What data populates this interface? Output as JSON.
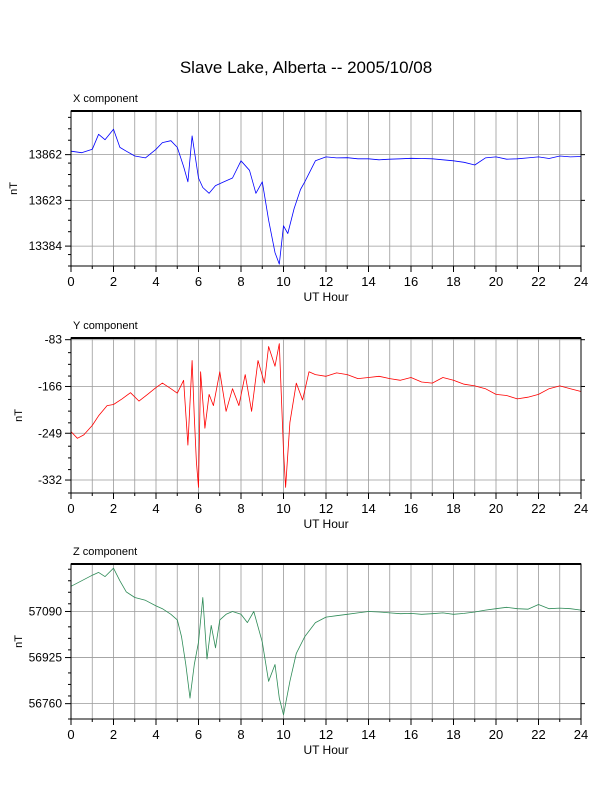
{
  "title": "Slave Lake, Alberta -- 2005/10/08",
  "chart_data": [
    {
      "type": "line",
      "subtitle": "X component",
      "xlabel": "UT Hour",
      "ylabel": "nT",
      "color": "#0000ff",
      "xlim": [
        0,
        24
      ],
      "ylim": [
        13280,
        14090
      ],
      "xticks": [
        0,
        2,
        4,
        6,
        8,
        10,
        12,
        14,
        16,
        18,
        20,
        22,
        24
      ],
      "yticks": [
        13862,
        13623,
        13384
      ],
      "grid": true,
      "series": [
        {
          "x": [
            0,
            0.5,
            1,
            1.3,
            1.6,
            2,
            2.3,
            2.6,
            3,
            3.5,
            4,
            4.3,
            4.7,
            5,
            5.3,
            5.5,
            5.7,
            6,
            6.2,
            6.5,
            6.8,
            7.2,
            7.6,
            8,
            8.4,
            8.7,
            9,
            9.3,
            9.6,
            9.8,
            10,
            10.2,
            10.5,
            10.8,
            11,
            11.5,
            12,
            12.5,
            13,
            13.5,
            14,
            14.5,
            15,
            15.5,
            16,
            16.5,
            17,
            17.5,
            18,
            18.5,
            19,
            19.5,
            20,
            20.5,
            21,
            21.5,
            22,
            22.5,
            23,
            23.5,
            24
          ],
          "values": [
            13880,
            13872,
            13890,
            13968,
            13940,
            13995,
            13900,
            13880,
            13855,
            13845,
            13890,
            13925,
            13935,
            13900,
            13800,
            13720,
            13960,
            13740,
            13690,
            13660,
            13700,
            13720,
            13740,
            13830,
            13780,
            13660,
            13720,
            13520,
            13350,
            13290,
            13490,
            13450,
            13580,
            13680,
            13720,
            13830,
            13850,
            13845,
            13846,
            13840,
            13840,
            13835,
            13838,
            13840,
            13843,
            13842,
            13840,
            13835,
            13830,
            13822,
            13808,
            13845,
            13850,
            13838,
            13840,
            13845,
            13850,
            13842,
            13855,
            13850,
            13852
          ]
        }
      ]
    },
    {
      "type": "line",
      "subtitle": "Y component",
      "xlabel": "UT Hour",
      "ylabel": "nT",
      "color": "#ff0000",
      "xlim": [
        0,
        24
      ],
      "ylim": [
        -355,
        -80
      ],
      "xticks": [
        0,
        2,
        4,
        6,
        8,
        10,
        12,
        14,
        16,
        18,
        20,
        22,
        24
      ],
      "yticks": [
        -83,
        -166,
        -249,
        -332
      ],
      "grid": true,
      "series": [
        {
          "x": [
            0,
            0.3,
            0.6,
            1,
            1.3,
            1.7,
            2,
            2.4,
            2.8,
            3.2,
            3.6,
            4,
            4.3,
            4.7,
            5,
            5.3,
            5.5,
            5.7,
            5.8,
            5.9,
            6,
            6.1,
            6.3,
            6.5,
            6.7,
            7,
            7.3,
            7.6,
            7.9,
            8.2,
            8.5,
            8.8,
            9.1,
            9.3,
            9.6,
            9.8,
            10,
            10.1,
            10.3,
            10.6,
            10.9,
            11.2,
            11.5,
            12,
            12.5,
            13,
            13.5,
            14,
            14.5,
            15,
            15.5,
            16,
            16.5,
            17,
            17.5,
            18,
            18.5,
            19,
            19.5,
            20,
            20.5,
            21,
            21.5,
            22,
            22.5,
            23,
            23.5,
            24
          ],
          "values": [
            -246,
            -258,
            -252,
            -235,
            -218,
            -200,
            -198,
            -188,
            -177,
            -192,
            -180,
            -168,
            -160,
            -170,
            -178,
            -155,
            -270,
            -120,
            -220,
            -300,
            -345,
            -140,
            -240,
            -180,
            -200,
            -140,
            -210,
            -170,
            -200,
            -145,
            -210,
            -120,
            -160,
            -95,
            -130,
            -90,
            -280,
            -345,
            -230,
            -160,
            -190,
            -140,
            -145,
            -148,
            -142,
            -145,
            -152,
            -150,
            -148,
            -152,
            -155,
            -150,
            -158,
            -160,
            -150,
            -155,
            -162,
            -165,
            -170,
            -180,
            -182,
            -188,
            -185,
            -180,
            -170,
            -165,
            -170,
            -175
          ]
        }
      ]
    },
    {
      "type": "line",
      "subtitle": "Z component",
      "xlabel": "UT Hour",
      "ylabel": "nT",
      "color": "#2e8b57",
      "xlim": [
        0,
        24
      ],
      "ylim": [
        56705,
        57260
      ],
      "xticks": [
        0,
        2,
        4,
        6,
        8,
        10,
        12,
        14,
        16,
        18,
        20,
        22,
        24
      ],
      "yticks": [
        57090,
        56925,
        56760
      ],
      "grid": true,
      "series": [
        {
          "x": [
            0,
            0.5,
            1,
            1.3,
            1.6,
            2,
            2.3,
            2.6,
            3,
            3.5,
            4,
            4.3,
            4.7,
            5,
            5.2,
            5.4,
            5.6,
            5.8,
            6,
            6.2,
            6.4,
            6.6,
            6.8,
            7,
            7.3,
            7.6,
            8,
            8.3,
            8.6,
            9,
            9.3,
            9.6,
            9.8,
            10,
            10.3,
            10.6,
            11,
            11.5,
            12,
            12.5,
            13,
            13.5,
            14,
            14.5,
            15,
            15.5,
            16,
            16.5,
            17,
            17.5,
            18,
            18.5,
            19,
            19.5,
            20,
            20.5,
            21,
            21.5,
            22,
            22.5,
            23,
            23.5,
            24
          ],
          "values": [
            57180,
            57200,
            57220,
            57230,
            57215,
            57245,
            57200,
            57160,
            57140,
            57130,
            57110,
            57100,
            57080,
            57060,
            57000,
            56900,
            56780,
            56900,
            56980,
            57140,
            56920,
            57040,
            56960,
            57060,
            57080,
            57090,
            57080,
            57050,
            57090,
            56980,
            56840,
            56900,
            56780,
            56720,
            56840,
            56940,
            57000,
            57050,
            57070,
            57075,
            57080,
            57085,
            57090,
            57088,
            57085,
            57082,
            57083,
            57080,
            57082,
            57085,
            57080,
            57083,
            57088,
            57095,
            57100,
            57105,
            57100,
            57098,
            57115,
            57100,
            57102,
            57100,
            57095
          ]
        }
      ]
    }
  ]
}
